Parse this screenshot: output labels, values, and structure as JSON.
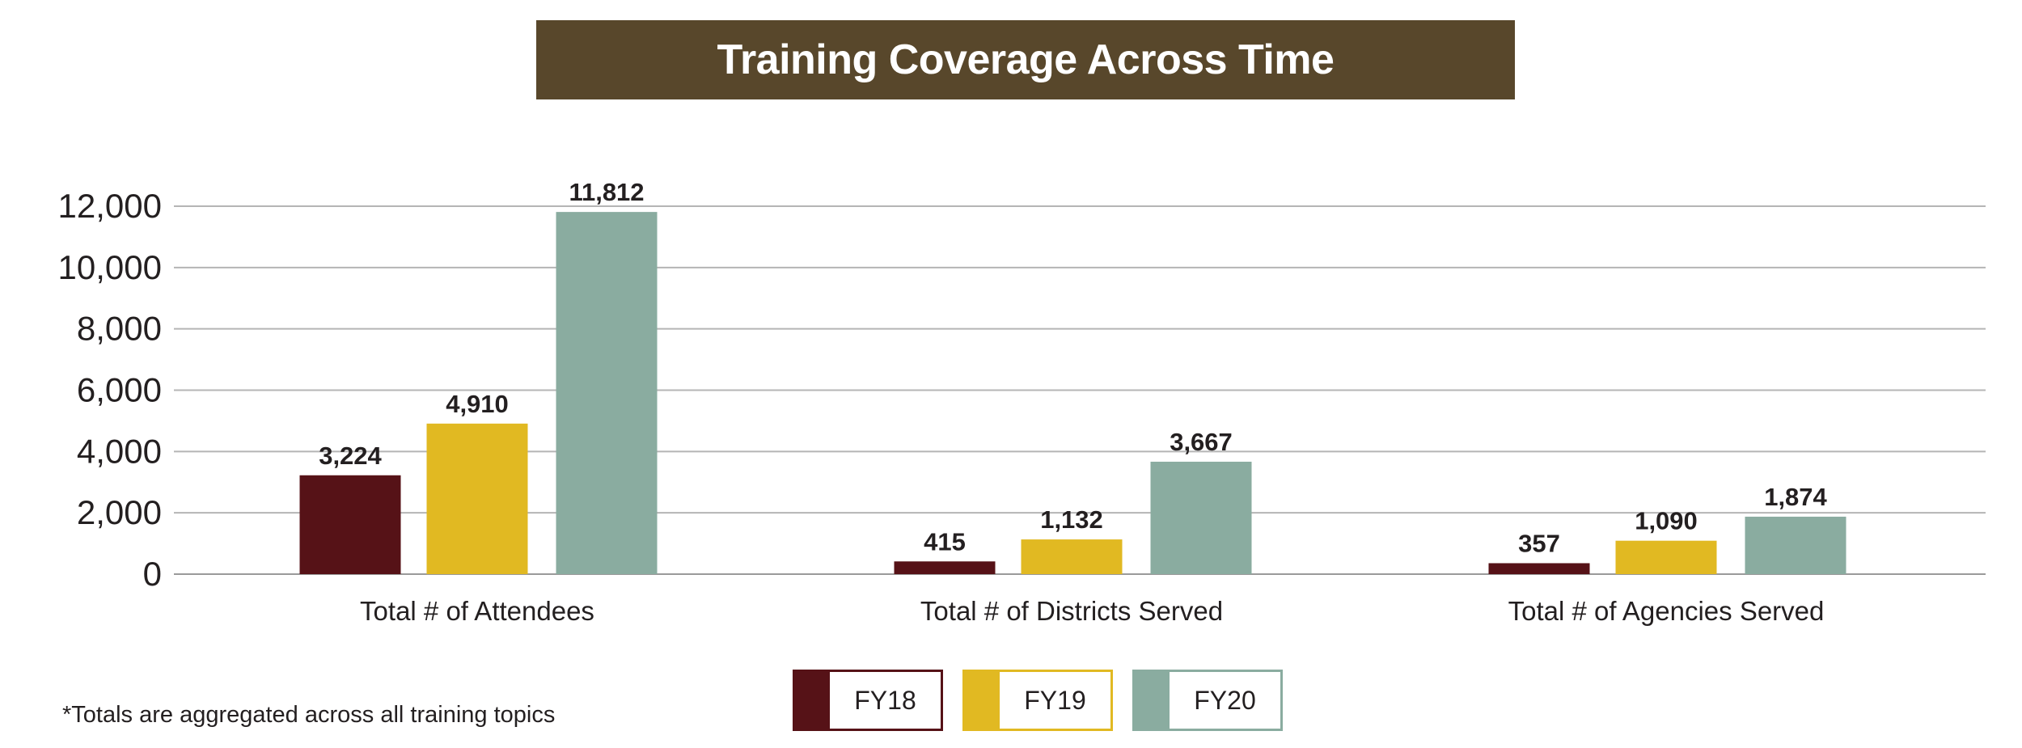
{
  "title": "Training Coverage Across Time",
  "footnote": "*Totals are aggregated across all training topics",
  "colors": {
    "FY18": "#561217",
    "FY19": "#e1b922",
    "FY20": "#8aaca0",
    "title_bg": "#58472b",
    "grid": "#b5b5b5",
    "text": "#231f20"
  },
  "chart_data": {
    "type": "bar",
    "title": "Training Coverage Across Time",
    "categories": [
      "Total # of Attendees",
      "Total # of Districts Served",
      "Total # of Agencies Served"
    ],
    "series": [
      {
        "name": "FY18",
        "values": [
          3224,
          415,
          357
        ],
        "labels": [
          "3,224",
          "415",
          "357"
        ]
      },
      {
        "name": "FY19",
        "values": [
          4910,
          1132,
          1090
        ],
        "labels": [
          "4,910",
          "1,132",
          "1,090"
        ]
      },
      {
        "name": "FY20",
        "values": [
          11812,
          3667,
          1874
        ],
        "labels": [
          "11,812",
          "3,667",
          "1,874"
        ]
      }
    ],
    "yticks": [
      0,
      2000,
      4000,
      6000,
      8000,
      10000,
      12000
    ],
    "ytick_labels": [
      "0",
      "2,000",
      "4,000",
      "6,000",
      "8,000",
      "10,000",
      "12,000"
    ],
    "ylim": [
      0,
      12000
    ],
    "grid": true,
    "legend": "bottom-center"
  }
}
